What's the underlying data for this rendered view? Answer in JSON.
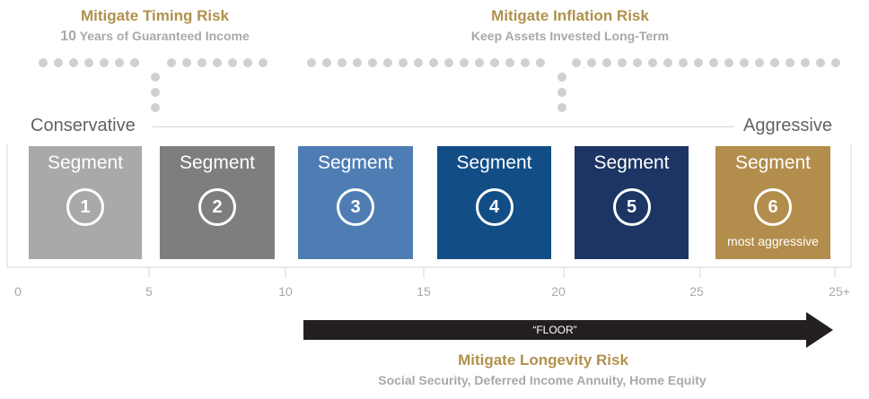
{
  "timing_risk": {
    "title": "Mitigate Timing Risk",
    "subtitle_num": "10",
    "subtitle_rest": " Years of Guaranteed Income"
  },
  "inflation_risk": {
    "title": "Mitigate Inflation Risk",
    "subtitle": "Keep Assets Invested Long-Term"
  },
  "scale": {
    "left_label": "Conservative",
    "right_label": "Aggressive"
  },
  "segments": [
    {
      "label": "Segment",
      "number": "1",
      "color": "#a7a9ab",
      "note": ""
    },
    {
      "label": "Segment",
      "number": "2",
      "color": "#7d7e80",
      "note": ""
    },
    {
      "label": "Segment",
      "number": "3",
      "color": "#4e7db4",
      "note": ""
    },
    {
      "label": "Segment",
      "number": "4",
      "color": "#124d86",
      "note": ""
    },
    {
      "label": "Segment",
      "number": "5",
      "color": "#1c3564",
      "note": ""
    },
    {
      "label": "Segment",
      "number": "6",
      "color": "#b38d4c",
      "note": "most aggressive"
    }
  ],
  "axis": {
    "ticks": [
      "0",
      "5",
      "10",
      "15",
      "20",
      "25",
      "25+"
    ]
  },
  "floor": {
    "label": "“FLOOR”"
  },
  "longevity_risk": {
    "title": "Mitigate Longevity Risk",
    "subtitle": "Social Security, Deferred Income Annuity, Home Equity"
  },
  "colors": {
    "gold": "#b0914c",
    "gray_text": "#a7a9ab",
    "dots": "#cfd0d1",
    "arrow": "#231f20"
  }
}
